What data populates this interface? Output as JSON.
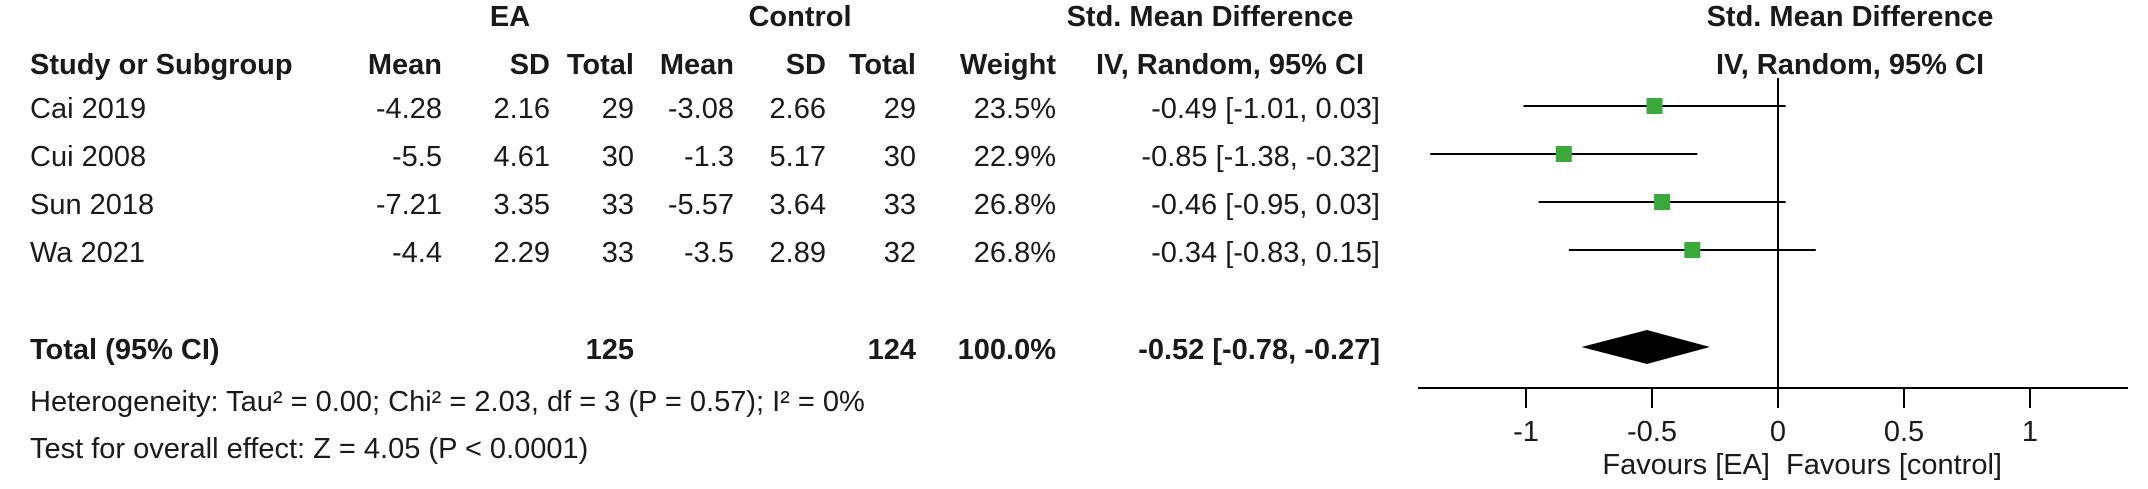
{
  "headers": {
    "group_ea": "EA",
    "group_control": "Control",
    "effect_header": "Std. Mean Difference",
    "study_col": "Study or Subgroup",
    "mean": "Mean",
    "sd": "SD",
    "total": "Total",
    "weight": "Weight",
    "method": "IV, Random, 95% CI",
    "plot_header": "Std. Mean Difference",
    "plot_method": "IV, Random, 95% CI"
  },
  "studies": [
    {
      "name": "Cai 2019",
      "ea_mean": "-4.28",
      "ea_sd": "2.16",
      "ea_total": "29",
      "ctl_mean": "-3.08",
      "ctl_sd": "2.66",
      "ctl_total": "29",
      "weight": "23.5%",
      "ci_text": "-0.49 [-1.01, 0.03]"
    },
    {
      "name": "Cui 2008",
      "ea_mean": "-5.5",
      "ea_sd": "4.61",
      "ea_total": "30",
      "ctl_mean": "-1.3",
      "ctl_sd": "5.17",
      "ctl_total": "30",
      "weight": "22.9%",
      "ci_text": "-0.85 [-1.38, -0.32]"
    },
    {
      "name": "Sun 2018",
      "ea_mean": "-7.21",
      "ea_sd": "3.35",
      "ea_total": "33",
      "ctl_mean": "-5.57",
      "ctl_sd": "3.64",
      "ctl_total": "33",
      "weight": "26.8%",
      "ci_text": "-0.46 [-0.95, 0.03]"
    },
    {
      "name": "Wa 2021",
      "ea_mean": "-4.4",
      "ea_sd": "2.29",
      "ea_total": "33",
      "ctl_mean": "-3.5",
      "ctl_sd": "2.89",
      "ctl_total": "32",
      "weight": "26.8%",
      "ci_text": "-0.34 [-0.83, 0.15]"
    }
  ],
  "total": {
    "label": "Total (95% CI)",
    "ea_total": "125",
    "ctl_total": "124",
    "weight": "100.0%",
    "ci_text": "-0.52 [-0.78, -0.27]"
  },
  "heterogeneity": "Heterogeneity: Tau² = 0.00; Chi² = 2.03, df = 3 (P = 0.57); I² = 0%",
  "overall_effect": "Test for overall effect: Z = 4.05 (P < 0.0001)",
  "chart_data": {
    "type": "forest",
    "xlim": [
      -1.5,
      1.5
    ],
    "xticks": [
      -1,
      -0.5,
      0,
      0.5,
      1
    ],
    "xtick_labels": [
      "-1",
      "-0.5",
      "0",
      "0.5",
      "1"
    ],
    "favours_left": "Favours [EA]",
    "favours_right": "Favours [control]",
    "studies": [
      {
        "est": -0.49,
        "lo": -1.01,
        "hi": 0.03
      },
      {
        "est": -0.85,
        "lo": -1.38,
        "hi": -0.32
      },
      {
        "est": -0.46,
        "lo": -0.95,
        "hi": 0.03
      },
      {
        "est": -0.34,
        "lo": -0.83,
        "hi": 0.15
      }
    ],
    "pooled": {
      "est": -0.52,
      "lo": -0.78,
      "hi": -0.27
    },
    "colors": {
      "marker": "#3aaa3a",
      "diamond": "#000000",
      "line": "#000000"
    }
  }
}
